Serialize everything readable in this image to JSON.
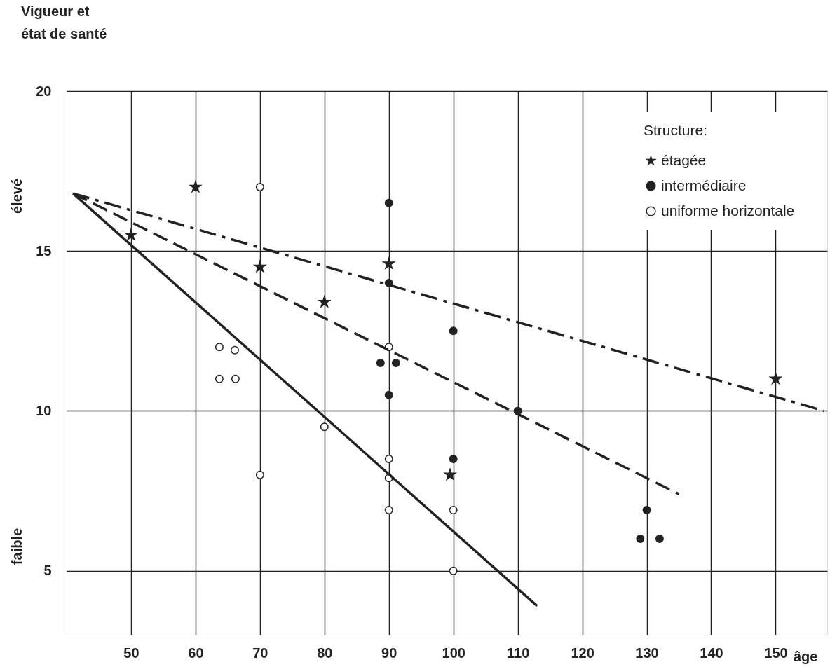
{
  "chart_data": {
    "type": "scatter",
    "ylabel": "Vigueur et état de santé",
    "xlabel": "âge",
    "legend_title": "Structure:",
    "legend": "top right",
    "grid": true,
    "xlim": [
      40,
      158
    ],
    "xticks": [
      50,
      60,
      70,
      80,
      90,
      100,
      110,
      120,
      130,
      140,
      150
    ],
    "ylim": [
      3,
      20
    ],
    "yticks": [
      5,
      10,
      15,
      20
    ],
    "annotations": [
      "élevé",
      "faible"
    ],
    "series": [
      {
        "name": "étagée",
        "marker": "star",
        "color": "#222222",
        "x": [
          50,
          60,
          70,
          80,
          90,
          99.5,
          150
        ],
        "values": [
          15.5,
          17,
          14.5,
          13.4,
          14.6,
          8,
          11
        ]
      },
      {
        "name": "intermédiaire",
        "marker": "circle",
        "color": "#222222",
        "x": [
          90,
          90,
          88.7,
          91.1,
          90,
          100,
          100,
          110,
          130,
          129,
          132
        ],
        "values": [
          16.5,
          14,
          11.5,
          11.5,
          10.5,
          12.5,
          8.5,
          10,
          6.9,
          6,
          6
        ]
      },
      {
        "name": "uniforme horizontale",
        "marker": "circle",
        "color": "#ffffff",
        "x": [
          70,
          63.7,
          66.1,
          63.7,
          66.2,
          90,
          80,
          70,
          90,
          90,
          90,
          100,
          100
        ],
        "values": [
          17,
          12,
          11.9,
          11,
          11,
          12,
          9.5,
          8,
          8.5,
          7.9,
          6.9,
          6.9,
          5
        ]
      },
      {
        "type": "line",
        "line_style": "solid",
        "marker": "none",
        "color": "#222222",
        "x": [
          41,
          113
        ],
        "values": [
          16.8,
          3.9
        ]
      },
      {
        "type": "line",
        "line_style": "dashed",
        "marker": "none",
        "color": "#222222",
        "x": [
          41,
          135
        ],
        "values": [
          16.8,
          7.4
        ]
      },
      {
        "type": "line",
        "line_style": "dashdot",
        "marker": "none",
        "color": "#222222",
        "x": [
          41,
          157.5
        ],
        "values": [
          16.8,
          10
        ]
      }
    ]
  }
}
